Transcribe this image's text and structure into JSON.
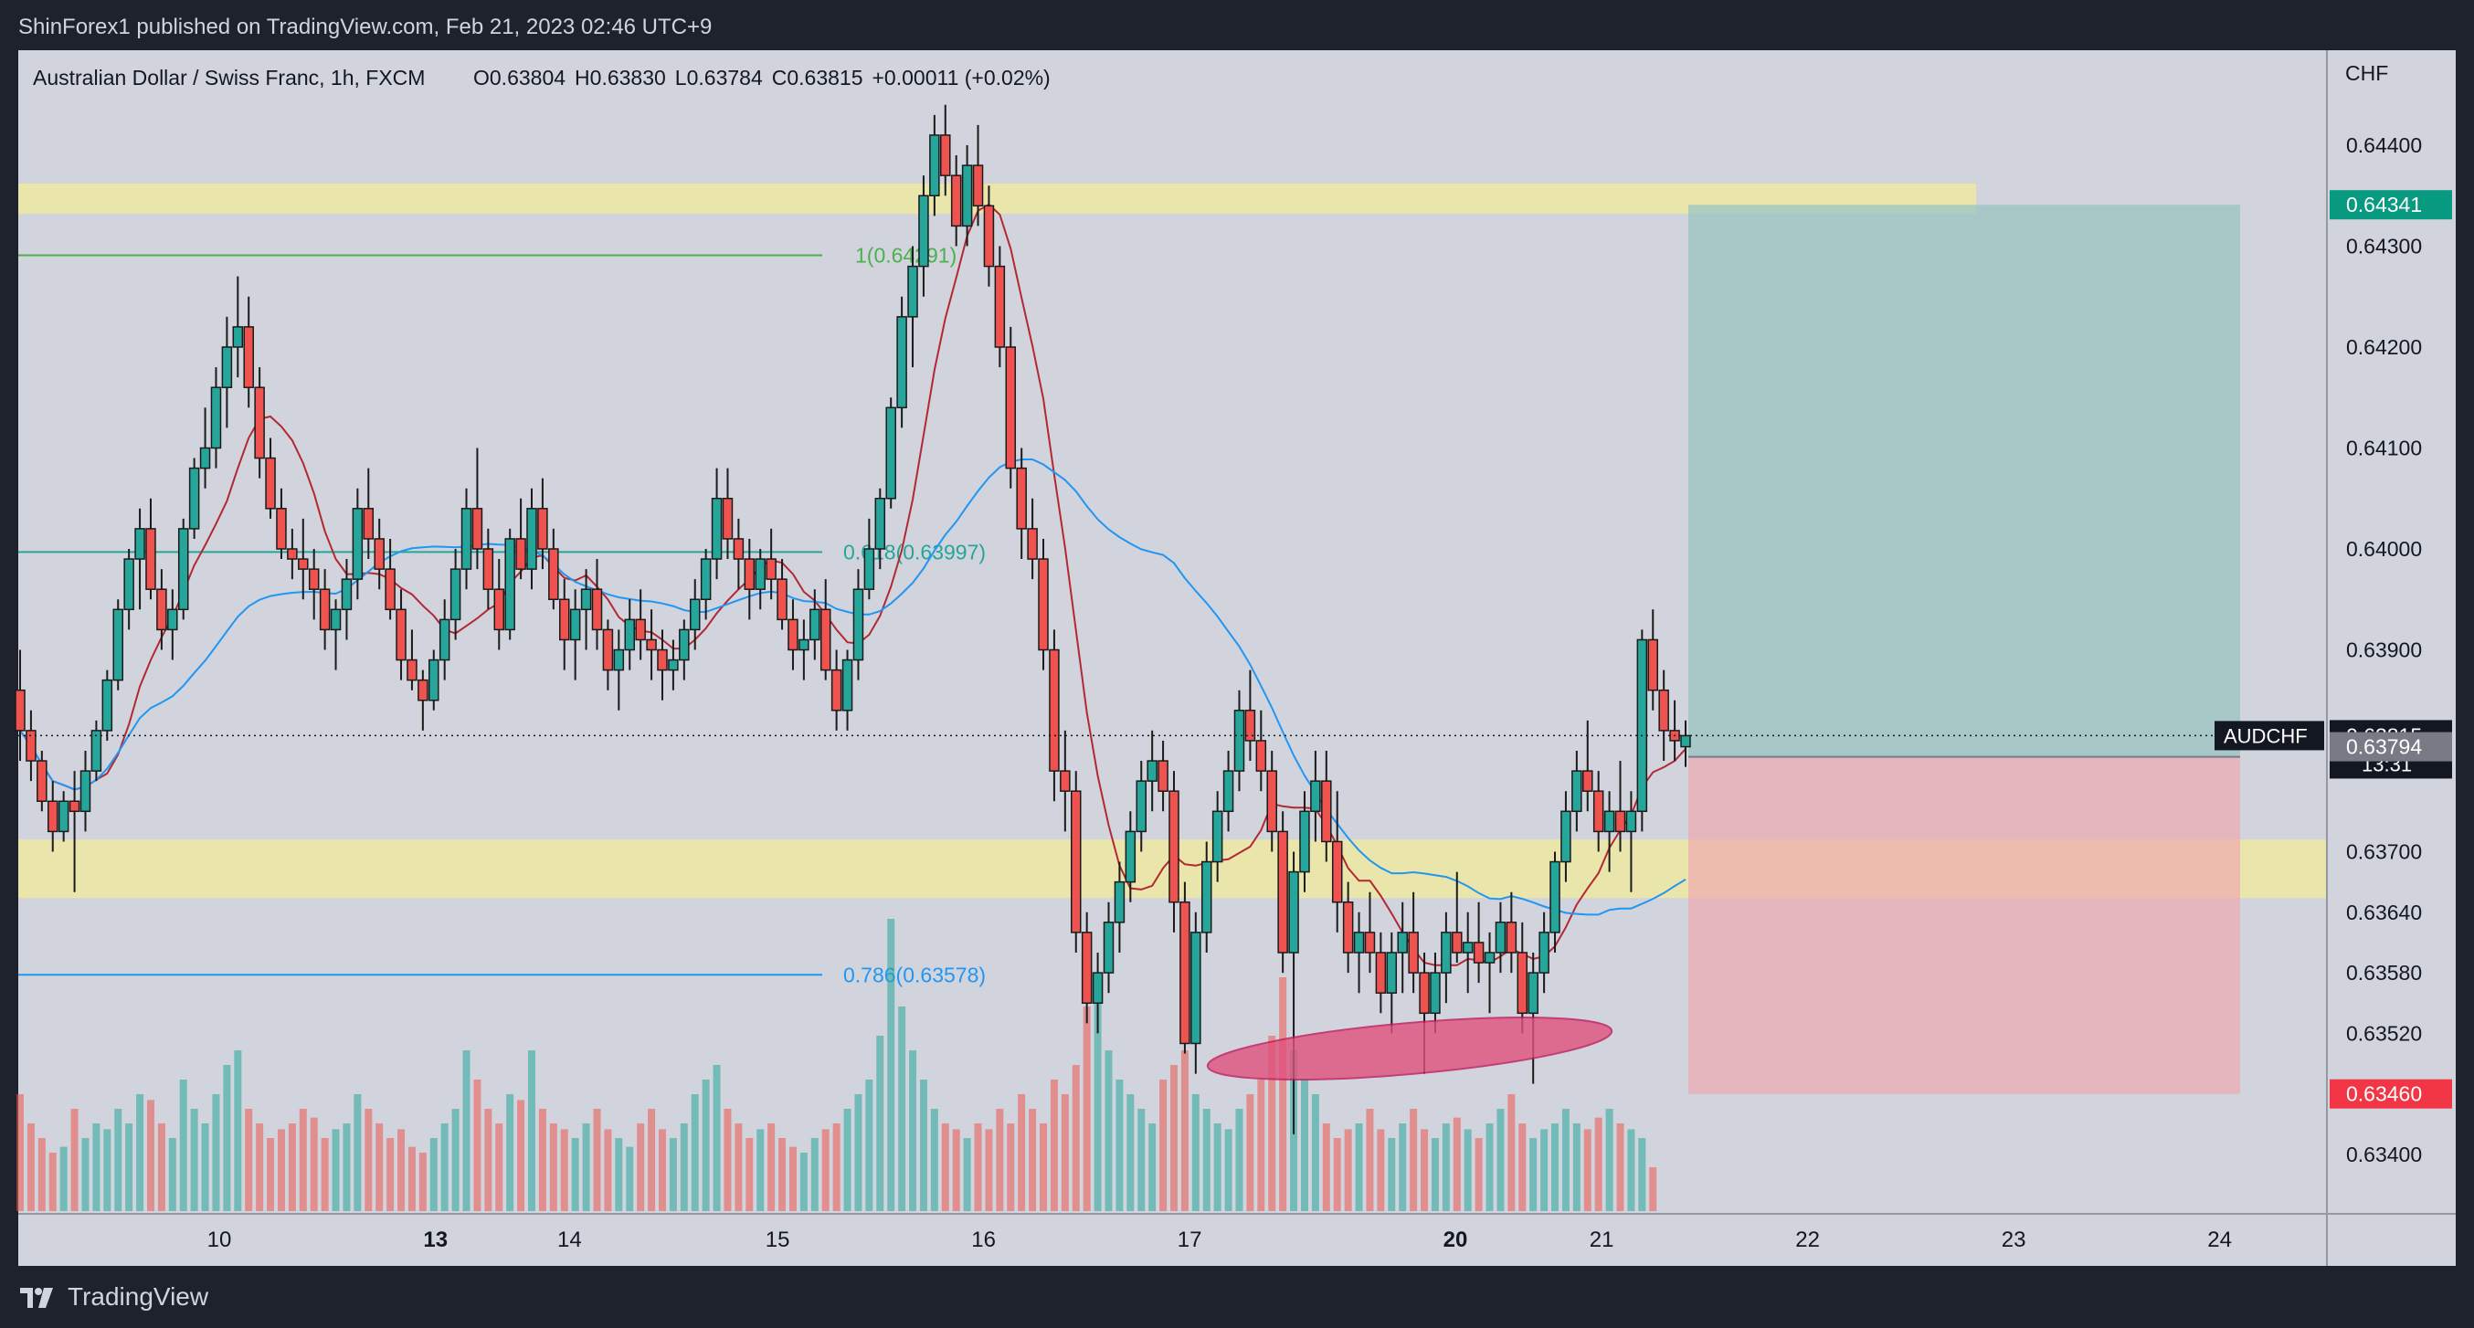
{
  "header": {
    "published": "ShinForex1 published on TradingView.com, Feb 21, 2023 02:46 UTC+9"
  },
  "footer": {
    "brand": "TradingView"
  },
  "legend": {
    "symbol": "Australian Dollar / Swiss Franc, 1h, FXCM",
    "open_label": "O",
    "open": "0.63804",
    "high_label": "H",
    "high": "0.63830",
    "low_label": "L",
    "low": "0.63784",
    "close_label": "C",
    "close": "0.63815",
    "change": "+0.00011 (+0.02%)"
  },
  "colors": {
    "background": "#1e222d",
    "plot_bg": "#d1d4dc",
    "up": "#26a69a",
    "down": "#ef5350",
    "candle_outline": "#1b1b1b",
    "ma_fast": "#b22833",
    "ma_slow": "#2196f3",
    "zone": "#efe7a1",
    "target": "#99c4c2",
    "stop": "#f0aab0",
    "ellipse": "#e0527d",
    "fib_green": "#4caf50",
    "fib_teal": "#26a69a",
    "fib_blue": "#2196f3"
  },
  "annotations": {
    "fib_top": "1(0.64291)",
    "fib_618": "0.618(0.63997)",
    "fib_786": "0.786(0.63578)"
  },
  "price_tags": {
    "currency": "CHF",
    "target": "0.64341",
    "last_symbol": "AUDCHF",
    "last": "0.63815",
    "countdown": "13:31",
    "entry": "0.63794",
    "stop": "0.63460"
  },
  "chart_data": {
    "type": "candlestick",
    "symbol": "AUDCHF",
    "timeframe": "1h",
    "y_axis": {
      "ticks": [
        "0.64400",
        "0.64300",
        "0.64200",
        "0.64100",
        "0.64000",
        "0.63900",
        "0.63700",
        "0.63640",
        "0.63580",
        "0.63520",
        "0.63400"
      ],
      "tick_values": [
        0.644,
        0.643,
        0.642,
        0.641,
        0.64,
        0.639,
        0.637,
        0.6364,
        0.6358,
        0.6352,
        0.634
      ]
    },
    "x_axis": {
      "labels": [
        "10",
        "13",
        "14",
        "15",
        "16",
        "17",
        "20",
        "21",
        "22",
        "23",
        "24"
      ],
      "bold": [
        "13",
        "20"
      ],
      "day_index": [
        2.45,
        3.5,
        4.15,
        5.16,
        6.16,
        7.16,
        8.45,
        9.16,
        10.16,
        11.16,
        12.16
      ]
    },
    "zones": [
      {
        "name": "resistance",
        "low": 0.64332,
        "high": 0.64362
      },
      {
        "name": "support",
        "low": 0.63654,
        "high": 0.63712
      }
    ],
    "fib_levels": [
      {
        "label": "1",
        "value": 0.64291
      },
      {
        "label": "0.618",
        "value": 0.63997
      },
      {
        "label": "0.786",
        "value": 0.63578
      }
    ],
    "position": {
      "entry": 0.63794,
      "target": 0.64341,
      "stop": 0.6346
    },
    "candles": [
      [
        0.6386,
        0.639,
        0.6379,
        0.6382
      ],
      [
        0.6382,
        0.6384,
        0.6377,
        0.6379
      ],
      [
        0.6379,
        0.638,
        0.6374,
        0.6375
      ],
      [
        0.6375,
        0.6377,
        0.637,
        0.6372
      ],
      [
        0.6372,
        0.6376,
        0.6371,
        0.6375
      ],
      [
        0.6375,
        0.6378,
        0.6366,
        0.6374
      ],
      [
        0.6374,
        0.638,
        0.6372,
        0.6378
      ],
      [
        0.6378,
        0.6383,
        0.6377,
        0.6382
      ],
      [
        0.6382,
        0.6388,
        0.6381,
        0.6387
      ],
      [
        0.6387,
        0.6395,
        0.6386,
        0.6394
      ],
      [
        0.6394,
        0.64,
        0.6392,
        0.6399
      ],
      [
        0.6399,
        0.6404,
        0.6394,
        0.6402
      ],
      [
        0.6402,
        0.6405,
        0.6395,
        0.6396
      ],
      [
        0.6396,
        0.6398,
        0.639,
        0.6392
      ],
      [
        0.6392,
        0.6396,
        0.6389,
        0.6394
      ],
      [
        0.6394,
        0.6403,
        0.6393,
        0.6402
      ],
      [
        0.6402,
        0.6409,
        0.6401,
        0.6408
      ],
      [
        0.6408,
        0.6414,
        0.6406,
        0.641
      ],
      [
        0.641,
        0.6418,
        0.6408,
        0.6416
      ],
      [
        0.6416,
        0.6423,
        0.6412,
        0.642
      ],
      [
        0.642,
        0.6427,
        0.6417,
        0.6422
      ],
      [
        0.6422,
        0.6425,
        0.6414,
        0.6416
      ],
      [
        0.6416,
        0.6418,
        0.6407,
        0.6409
      ],
      [
        0.6409,
        0.6411,
        0.6403,
        0.6404
      ],
      [
        0.6404,
        0.6406,
        0.6399,
        0.64
      ],
      [
        0.64,
        0.6402,
        0.6397,
        0.6399
      ],
      [
        0.6399,
        0.6403,
        0.6395,
        0.6398
      ],
      [
        0.6398,
        0.64,
        0.6393,
        0.6396
      ],
      [
        0.6396,
        0.6398,
        0.639,
        0.6392
      ],
      [
        0.6392,
        0.6395,
        0.6388,
        0.6394
      ],
      [
        0.6394,
        0.6399,
        0.6391,
        0.6397
      ],
      [
        0.6397,
        0.6406,
        0.6395,
        0.6404
      ],
      [
        0.6404,
        0.6408,
        0.6399,
        0.6401
      ],
      [
        0.6401,
        0.6403,
        0.6396,
        0.6398
      ],
      [
        0.6398,
        0.6401,
        0.6393,
        0.6394
      ],
      [
        0.6394,
        0.6396,
        0.6387,
        0.6389
      ],
      [
        0.6389,
        0.6392,
        0.6386,
        0.6387
      ],
      [
        0.6387,
        0.6388,
        0.6382,
        0.6385
      ],
      [
        0.6385,
        0.639,
        0.6384,
        0.6389
      ],
      [
        0.6389,
        0.6395,
        0.6387,
        0.6393
      ],
      [
        0.6393,
        0.64,
        0.6391,
        0.6398
      ],
      [
        0.6398,
        0.6406,
        0.6396,
        0.6404
      ],
      [
        0.6404,
        0.641,
        0.6398,
        0.64
      ],
      [
        0.64,
        0.6402,
        0.6394,
        0.6396
      ],
      [
        0.6396,
        0.6399,
        0.639,
        0.6392
      ],
      [
        0.6392,
        0.6402,
        0.6391,
        0.6401
      ],
      [
        0.6401,
        0.6405,
        0.6397,
        0.6398
      ],
      [
        0.6398,
        0.6406,
        0.6396,
        0.6404
      ],
      [
        0.6404,
        0.6407,
        0.6398,
        0.64
      ],
      [
        0.64,
        0.6402,
        0.6394,
        0.6395
      ],
      [
        0.6395,
        0.6397,
        0.6388,
        0.6391
      ],
      [
        0.6391,
        0.6396,
        0.6387,
        0.6394
      ],
      [
        0.6394,
        0.6398,
        0.639,
        0.6396
      ],
      [
        0.6396,
        0.6399,
        0.639,
        0.6392
      ],
      [
        0.6392,
        0.6393,
        0.6386,
        0.6388
      ],
      [
        0.6388,
        0.6392,
        0.6384,
        0.639
      ],
      [
        0.639,
        0.6395,
        0.6388,
        0.6393
      ],
      [
        0.6393,
        0.6396,
        0.6389,
        0.6391
      ],
      [
        0.6391,
        0.6394,
        0.6387,
        0.639
      ],
      [
        0.639,
        0.6392,
        0.6385,
        0.6388
      ],
      [
        0.6388,
        0.6391,
        0.6386,
        0.6389
      ],
      [
        0.6389,
        0.6393,
        0.6387,
        0.6392
      ],
      [
        0.6392,
        0.6397,
        0.639,
        0.6395
      ],
      [
        0.6395,
        0.64,
        0.6393,
        0.6399
      ],
      [
        0.6399,
        0.6408,
        0.6397,
        0.6405
      ],
      [
        0.6405,
        0.6408,
        0.6399,
        0.6401
      ],
      [
        0.6401,
        0.6403,
        0.6396,
        0.6399
      ],
      [
        0.6399,
        0.6401,
        0.6393,
        0.6396
      ],
      [
        0.6396,
        0.64,
        0.6394,
        0.6399
      ],
      [
        0.6399,
        0.6402,
        0.6395,
        0.6397
      ],
      [
        0.6397,
        0.6399,
        0.6392,
        0.6393
      ],
      [
        0.6393,
        0.6395,
        0.6388,
        0.639
      ],
      [
        0.639,
        0.6393,
        0.6387,
        0.6391
      ],
      [
        0.6391,
        0.6396,
        0.6389,
        0.6394
      ],
      [
        0.6394,
        0.6397,
        0.6387,
        0.6388
      ],
      [
        0.6388,
        0.639,
        0.6382,
        0.6384
      ],
      [
        0.6384,
        0.639,
        0.6382,
        0.6389
      ],
      [
        0.6389,
        0.6398,
        0.6387,
        0.6396
      ],
      [
        0.6396,
        0.6403,
        0.6395,
        0.64
      ],
      [
        0.64,
        0.6406,
        0.6398,
        0.6405
      ],
      [
        0.6405,
        0.6415,
        0.6404,
        0.6414
      ],
      [
        0.6414,
        0.6425,
        0.6412,
        0.6423
      ],
      [
        0.6423,
        0.643,
        0.6418,
        0.6428
      ],
      [
        0.6428,
        0.6437,
        0.6425,
        0.6435
      ],
      [
        0.6435,
        0.6443,
        0.6433,
        0.6441
      ],
      [
        0.6441,
        0.6444,
        0.6435,
        0.6437
      ],
      [
        0.6437,
        0.6439,
        0.643,
        0.6432
      ],
      [
        0.6432,
        0.644,
        0.643,
        0.6438
      ],
      [
        0.6438,
        0.6442,
        0.6432,
        0.6434
      ],
      [
        0.6434,
        0.6436,
        0.6426,
        0.6428
      ],
      [
        0.6428,
        0.643,
        0.6418,
        0.642
      ],
      [
        0.642,
        0.6422,
        0.6406,
        0.6408
      ],
      [
        0.6408,
        0.641,
        0.6399,
        0.6402
      ],
      [
        0.6402,
        0.6405,
        0.6397,
        0.6399
      ],
      [
        0.6399,
        0.6401,
        0.6388,
        0.639
      ],
      [
        0.639,
        0.6392,
        0.6375,
        0.6378
      ],
      [
        0.6378,
        0.6382,
        0.6372,
        0.6376
      ],
      [
        0.6376,
        0.6378,
        0.636,
        0.6362
      ],
      [
        0.6362,
        0.6364,
        0.6353,
        0.6355
      ],
      [
        0.6355,
        0.636,
        0.6352,
        0.6358
      ],
      [
        0.6358,
        0.6365,
        0.6356,
        0.6363
      ],
      [
        0.6363,
        0.6369,
        0.636,
        0.6367
      ],
      [
        0.6367,
        0.6374,
        0.6365,
        0.6372
      ],
      [
        0.6372,
        0.6379,
        0.637,
        0.6377
      ],
      [
        0.6377,
        0.6382,
        0.6374,
        0.6379
      ],
      [
        0.6379,
        0.6381,
        0.6374,
        0.6376
      ],
      [
        0.6376,
        0.6378,
        0.6362,
        0.6365
      ],
      [
        0.6365,
        0.6367,
        0.635,
        0.6351
      ],
      [
        0.6351,
        0.6364,
        0.6348,
        0.6362
      ],
      [
        0.6362,
        0.6371,
        0.636,
        0.6369
      ],
      [
        0.6369,
        0.6376,
        0.6367,
        0.6374
      ],
      [
        0.6374,
        0.638,
        0.6372,
        0.6378
      ],
      [
        0.6378,
        0.6386,
        0.6376,
        0.6384
      ],
      [
        0.6384,
        0.6388,
        0.6379,
        0.6381
      ],
      [
        0.6381,
        0.6384,
        0.6376,
        0.6378
      ],
      [
        0.6378,
        0.638,
        0.637,
        0.6372
      ],
      [
        0.6372,
        0.6374,
        0.6358,
        0.636
      ],
      [
        0.636,
        0.637,
        0.6342,
        0.6368
      ],
      [
        0.6368,
        0.6376,
        0.6366,
        0.6374
      ],
      [
        0.6374,
        0.638,
        0.6371,
        0.6377
      ],
      [
        0.6377,
        0.638,
        0.6369,
        0.6371
      ],
      [
        0.6371,
        0.6376,
        0.6362,
        0.6365
      ],
      [
        0.6365,
        0.6367,
        0.6358,
        0.636
      ],
      [
        0.636,
        0.6364,
        0.6356,
        0.6362
      ],
      [
        0.6362,
        0.6366,
        0.6358,
        0.636
      ],
      [
        0.636,
        0.6362,
        0.6354,
        0.6356
      ],
      [
        0.6356,
        0.6362,
        0.6352,
        0.636
      ],
      [
        0.636,
        0.6365,
        0.6356,
        0.6362
      ],
      [
        0.6362,
        0.6366,
        0.6356,
        0.6358
      ],
      [
        0.6358,
        0.636,
        0.6348,
        0.6354
      ],
      [
        0.6354,
        0.636,
        0.6352,
        0.6358
      ],
      [
        0.6358,
        0.6364,
        0.6355,
        0.6362
      ],
      [
        0.6362,
        0.6368,
        0.6359,
        0.636
      ],
      [
        0.636,
        0.6364,
        0.6356,
        0.6361
      ],
      [
        0.6361,
        0.6365,
        0.6357,
        0.6359
      ],
      [
        0.6359,
        0.6362,
        0.6354,
        0.636
      ],
      [
        0.636,
        0.6365,
        0.6358,
        0.6363
      ],
      [
        0.6363,
        0.6366,
        0.6358,
        0.636
      ],
      [
        0.636,
        0.6363,
        0.6352,
        0.6354
      ],
      [
        0.6354,
        0.636,
        0.6347,
        0.6358
      ],
      [
        0.6358,
        0.6364,
        0.6356,
        0.6362
      ],
      [
        0.6362,
        0.637,
        0.636,
        0.6369
      ],
      [
        0.6369,
        0.6376,
        0.6367,
        0.6374
      ],
      [
        0.6374,
        0.638,
        0.6372,
        0.6378
      ],
      [
        0.6378,
        0.6383,
        0.6374,
        0.6376
      ],
      [
        0.6376,
        0.6378,
        0.637,
        0.6372
      ],
      [
        0.6372,
        0.6376,
        0.6368,
        0.6374
      ],
      [
        0.6374,
        0.6379,
        0.637,
        0.6372
      ],
      [
        0.6372,
        0.6376,
        0.6366,
        0.6374
      ],
      [
        0.6374,
        0.6392,
        0.6372,
        0.6391
      ],
      [
        0.6391,
        0.6394,
        0.6384,
        0.6386
      ],
      [
        0.6386,
        0.6388,
        0.6379,
        0.6382
      ],
      [
        0.6382,
        0.6385,
        0.6379,
        0.6381
      ],
      [
        0.63804,
        0.6383,
        0.63784,
        0.63815
      ]
    ],
    "volume": [
      0.4,
      0.3,
      0.25,
      0.2,
      0.22,
      0.35,
      0.25,
      0.3,
      0.28,
      0.35,
      0.3,
      0.4,
      0.38,
      0.3,
      0.25,
      0.45,
      0.35,
      0.3,
      0.4,
      0.5,
      0.55,
      0.35,
      0.3,
      0.25,
      0.28,
      0.3,
      0.35,
      0.32,
      0.25,
      0.28,
      0.3,
      0.4,
      0.35,
      0.3,
      0.25,
      0.28,
      0.22,
      0.2,
      0.25,
      0.3,
      0.35,
      0.55,
      0.45,
      0.35,
      0.3,
      0.4,
      0.38,
      0.55,
      0.35,
      0.3,
      0.28,
      0.25,
      0.3,
      0.35,
      0.28,
      0.25,
      0.22,
      0.3,
      0.35,
      0.28,
      0.25,
      0.3,
      0.4,
      0.45,
      0.5,
      0.35,
      0.3,
      0.25,
      0.28,
      0.3,
      0.25,
      0.22,
      0.2,
      0.25,
      0.28,
      0.3,
      0.35,
      0.4,
      0.45,
      0.6,
      1.0,
      0.7,
      0.55,
      0.45,
      0.35,
      0.3,
      0.28,
      0.25,
      0.3,
      0.28,
      0.35,
      0.3,
      0.4,
      0.35,
      0.3,
      0.45,
      0.4,
      0.5,
      0.7,
      0.75,
      0.55,
      0.45,
      0.4,
      0.35,
      0.3,
      0.45,
      0.5,
      0.55,
      0.4,
      0.35,
      0.3,
      0.28,
      0.35,
      0.4,
      0.45,
      0.6,
      0.8,
      0.55,
      0.45,
      0.4,
      0.3,
      0.25,
      0.28,
      0.3,
      0.35,
      0.28,
      0.25,
      0.3,
      0.35,
      0.28,
      0.25,
      0.3,
      0.32,
      0.28,
      0.25,
      0.3,
      0.35,
      0.4,
      0.3,
      0.25,
      0.28,
      0.3,
      0.35,
      0.3,
      0.28,
      0.32,
      0.35,
      0.3,
      0.28,
      0.25,
      0.15
    ]
  }
}
